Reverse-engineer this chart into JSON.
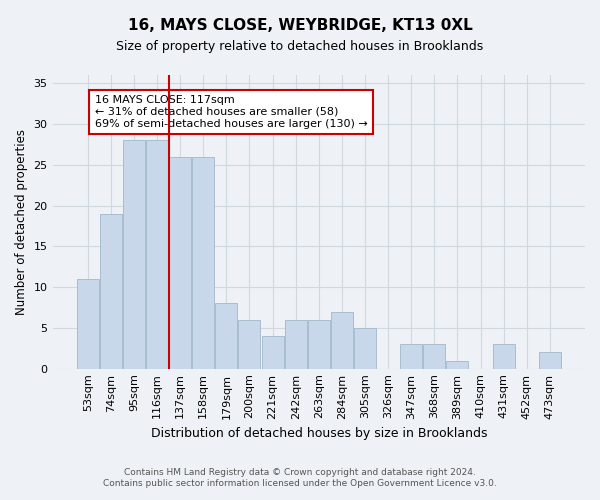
{
  "title1": "16, MAYS CLOSE, WEYBRIDGE, KT13 0XL",
  "title2": "Size of property relative to detached houses in Brooklands",
  "xlabel": "Distribution of detached houses by size in Brooklands",
  "ylabel": "Number of detached properties",
  "footnote1": "Contains HM Land Registry data © Crown copyright and database right 2024.",
  "footnote2": "Contains public sector information licensed under the Open Government Licence v3.0.",
  "bar_labels": [
    "53sqm",
    "74sqm",
    "95sqm",
    "116sqm",
    "137sqm",
    "158sqm",
    "179sqm",
    "200sqm",
    "221sqm",
    "242sqm",
    "263sqm",
    "284sqm",
    "305sqm",
    "326sqm",
    "347sqm",
    "368sqm",
    "389sqm",
    "410sqm",
    "431sqm",
    "452sqm",
    "473sqm"
  ],
  "bar_values": [
    11,
    19,
    28,
    28,
    26,
    26,
    8,
    6,
    4,
    6,
    6,
    7,
    5,
    0,
    3,
    3,
    1,
    0,
    3,
    0,
    2
  ],
  "bar_color": "#c8d8ea",
  "bar_edgecolor": "#a8bece",
  "vline_x": 3.5,
  "vline_color": "#cc0000",
  "annotation_text": "16 MAYS CLOSE: 117sqm\n← 31% of detached houses are smaller (58)\n69% of semi-detached houses are larger (130) →",
  "annotation_box_color": "white",
  "annotation_box_edgecolor": "#cc0000",
  "ylim": [
    0,
    36
  ],
  "yticks": [
    0,
    5,
    10,
    15,
    20,
    25,
    30,
    35
  ],
  "grid_color": "#d0d8e0",
  "background_color": "#eef2f6"
}
